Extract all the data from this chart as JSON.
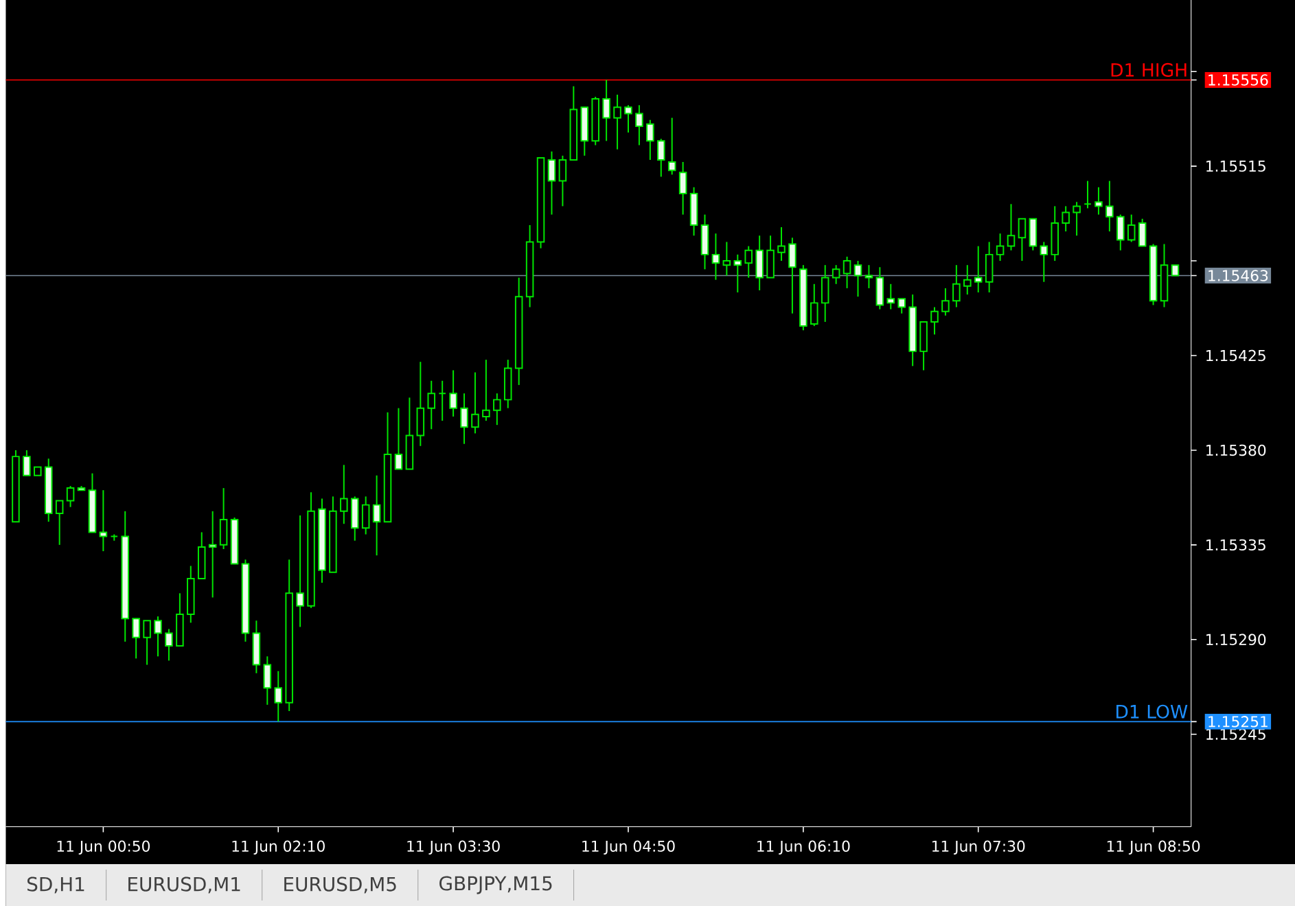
{
  "chart_data": {
    "type": "candlestick",
    "color": "#00e600",
    "grid": false,
    "categories": [
      null,
      null,
      null,
      null,
      null,
      null,
      null,
      null,
      "11 Jun 00:50",
      null,
      null,
      null,
      null,
      null,
      null,
      null,
      null,
      null,
      null,
      null,
      null,
      null,
      null,
      null,
      "11 Jun 02:10",
      null,
      null,
      null,
      null,
      null,
      null,
      null,
      null,
      null,
      null,
      null,
      null,
      null,
      null,
      null,
      "11 Jun 03:30",
      null,
      null,
      null,
      null,
      null,
      null,
      null,
      null,
      null,
      null,
      null,
      null,
      null,
      null,
      null,
      "11 Jun 04:50",
      null,
      null,
      null,
      null,
      null,
      null,
      null,
      null,
      null,
      null,
      null,
      null,
      null,
      null,
      null,
      "11 Jun 06:10",
      null,
      null,
      null,
      null,
      null,
      null,
      null,
      null,
      null,
      null,
      null,
      null,
      null,
      null,
      null,
      "11 Jun 07:30",
      null,
      null,
      null,
      null,
      null,
      null,
      null,
      null,
      null,
      null,
      null,
      null,
      null,
      null,
      null,
      "11 Jun 08:50",
      null,
      null
    ],
    "ohlc": [
      [
        1.15346,
        1.1538,
        1.15346,
        1.15377
      ],
      [
        1.15377,
        1.1538,
        1.15368,
        1.15368
      ],
      [
        1.15368,
        1.15372,
        1.15368,
        1.15372
      ],
      [
        1.15372,
        1.15376,
        1.15346,
        1.1535
      ],
      [
        1.1535,
        1.15356,
        1.15335,
        1.15356
      ],
      [
        1.15356,
        1.15363,
        1.15353,
        1.15362
      ],
      [
        1.15362,
        1.15363,
        1.15361,
        1.15361
      ],
      [
        1.15361,
        1.15369,
        1.15341,
        1.15341
      ],
      [
        1.15341,
        1.15361,
        1.15332,
        1.15339
      ],
      [
        1.15339,
        1.1534,
        1.15337,
        1.15339
      ],
      [
        1.15339,
        1.15351,
        1.15289,
        1.153
      ],
      [
        1.153,
        1.153,
        1.15281,
        1.15291
      ],
      [
        1.15291,
        1.15299,
        1.15278,
        1.15299
      ],
      [
        1.15299,
        1.15301,
        1.15282,
        1.15293
      ],
      [
        1.15293,
        1.15295,
        1.1528,
        1.15287
      ],
      [
        1.15287,
        1.15312,
        1.15287,
        1.15302
      ],
      [
        1.15302,
        1.15325,
        1.15298,
        1.15319
      ],
      [
        1.15319,
        1.15341,
        1.15319,
        1.15334
      ],
      [
        1.15335,
        1.15351,
        1.1531,
        1.15334
      ],
      [
        1.15335,
        1.15362,
        1.15333,
        1.15347
      ],
      [
        1.15347,
        1.15348,
        1.15326,
        1.15326
      ],
      [
        1.15326,
        1.15328,
        1.15289,
        1.15293
      ],
      [
        1.15293,
        1.15299,
        1.15274,
        1.15278
      ],
      [
        1.15278,
        1.15282,
        1.15259,
        1.15267
      ],
      [
        1.15267,
        1.15275,
        1.15251,
        1.1526
      ],
      [
        1.1526,
        1.15328,
        1.15256,
        1.15312
      ],
      [
        1.15312,
        1.15349,
        1.15296,
        1.15306
      ],
      [
        1.15306,
        1.1536,
        1.15305,
        1.15351
      ],
      [
        1.15352,
        1.15357,
        1.15317,
        1.15323
      ],
      [
        1.15322,
        1.15358,
        1.15322,
        1.15351
      ],
      [
        1.15351,
        1.15373,
        1.15345,
        1.15357
      ],
      [
        1.15357,
        1.15358,
        1.15337,
        1.15343
      ],
      [
        1.15343,
        1.15358,
        1.1534,
        1.15354
      ],
      [
        1.15354,
        1.15368,
        1.1533,
        1.15346
      ],
      [
        1.15346,
        1.15398,
        1.15346,
        1.15378
      ],
      [
        1.15378,
        1.154,
        1.15371,
        1.15371
      ],
      [
        1.15371,
        1.15405,
        1.15371,
        1.15387
      ],
      [
        1.15387,
        1.15422,
        1.15382,
        1.154
      ],
      [
        1.154,
        1.15413,
        1.1539,
        1.15407
      ],
      [
        1.15407,
        1.15413,
        1.15394,
        1.15407
      ],
      [
        1.15407,
        1.15418,
        1.15396,
        1.154
      ],
      [
        1.154,
        1.15407,
        1.15383,
        1.15391
      ],
      [
        1.15391,
        1.15417,
        1.15388,
        1.15397
      ],
      [
        1.15396,
        1.15423,
        1.15394,
        1.15399
      ],
      [
        1.15399,
        1.15407,
        1.15392,
        1.15404
      ],
      [
        1.15404,
        1.15423,
        1.154,
        1.15419
      ],
      [
        1.15419,
        1.15462,
        1.15411,
        1.15453
      ],
      [
        1.15453,
        1.15487,
        1.15448,
        1.15479
      ],
      [
        1.15479,
        1.15519,
        1.15476,
        1.15519
      ],
      [
        1.15518,
        1.15522,
        1.15492,
        1.15508
      ],
      [
        1.15508,
        1.1552,
        1.15496,
        1.15518
      ],
      [
        1.15518,
        1.15553,
        1.15518,
        1.15542
      ],
      [
        1.15543,
        1.15543,
        1.1552,
        1.15527
      ],
      [
        1.15527,
        1.15548,
        1.15525,
        1.15547
      ],
      [
        1.15547,
        1.15556,
        1.15527,
        1.15538
      ],
      [
        1.15538,
        1.15549,
        1.15523,
        1.15543
      ],
      [
        1.15543,
        1.15544,
        1.15531,
        1.1554
      ],
      [
        1.1554,
        1.15544,
        1.15525,
        1.15534
      ],
      [
        1.15535,
        1.15537,
        1.15518,
        1.15527
      ],
      [
        1.15527,
        1.15528,
        1.1551,
        1.15518
      ],
      [
        1.15517,
        1.15538,
        1.15511,
        1.15513
      ],
      [
        1.15512,
        1.15517,
        1.15492,
        1.15502
      ],
      [
        1.15502,
        1.15505,
        1.15482,
        1.15487
      ],
      [
        1.15487,
        1.15492,
        1.15466,
        1.15473
      ],
      [
        1.15473,
        1.15483,
        1.15461,
        1.15469
      ],
      [
        1.15468,
        1.15479,
        1.15463,
        1.1547
      ],
      [
        1.1547,
        1.15473,
        1.15455,
        1.15468
      ],
      [
        1.15469,
        1.15477,
        1.15462,
        1.15475
      ],
      [
        1.15475,
        1.15482,
        1.15456,
        1.15462
      ],
      [
        1.15462,
        1.15482,
        1.15462,
        1.15475
      ],
      [
        1.15474,
        1.15486,
        1.1547,
        1.15477
      ],
      [
        1.15478,
        1.15481,
        1.15445,
        1.15467
      ],
      [
        1.15466,
        1.15468,
        1.15437,
        1.15439
      ],
      [
        1.1544,
        1.15459,
        1.15439,
        1.1545
      ],
      [
        1.1545,
        1.15468,
        1.15441,
        1.15462
      ],
      [
        1.15462,
        1.15468,
        1.15459,
        1.15466
      ],
      [
        1.15464,
        1.15472,
        1.15457,
        1.1547
      ],
      [
        1.15468,
        1.1547,
        1.15453,
        1.15463
      ],
      [
        1.15463,
        1.15468,
        1.15457,
        1.15462
      ],
      [
        1.15462,
        1.15467,
        1.15447,
        1.15449
      ],
      [
        1.15452,
        1.15459,
        1.15447,
        1.1545
      ],
      [
        1.15452,
        1.15452,
        1.15445,
        1.15448
      ],
      [
        1.15448,
        1.15454,
        1.1542,
        1.15427
      ],
      [
        1.15427,
        1.15441,
        1.15418,
        1.15441
      ],
      [
        1.15441,
        1.15448,
        1.15435,
        1.15446
      ],
      [
        1.15446,
        1.15457,
        1.15444,
        1.15451
      ],
      [
        1.15451,
        1.15468,
        1.15448,
        1.15459
      ],
      [
        1.15458,
        1.15468,
        1.15454,
        1.15461
      ],
      [
        1.15462,
        1.15477,
        1.15455,
        1.1546
      ],
      [
        1.1546,
        1.15479,
        1.15455,
        1.15473
      ],
      [
        1.15473,
        1.15483,
        1.1547,
        1.15477
      ],
      [
        1.15477,
        1.15497,
        1.15475,
        1.15482
      ],
      [
        1.15481,
        1.1549,
        1.1547,
        1.1549
      ],
      [
        1.1549,
        1.1549,
        1.15475,
        1.15477
      ],
      [
        1.15477,
        1.15479,
        1.1546,
        1.15473
      ],
      [
        1.15473,
        1.15496,
        1.1547,
        1.15488
      ],
      [
        1.15488,
        1.15496,
        1.15484,
        1.15493
      ],
      [
        1.15493,
        1.15498,
        1.15482,
        1.15496
      ],
      [
        1.15497,
        1.15508,
        1.15495,
        1.15497
      ],
      [
        1.15498,
        1.15505,
        1.15492,
        1.15496
      ],
      [
        1.15496,
        1.15508,
        1.15484,
        1.15491
      ],
      [
        1.15491,
        1.15492,
        1.15475,
        1.1548
      ],
      [
        1.1548,
        1.15492,
        1.15479,
        1.15487
      ],
      [
        1.15488,
        1.1549,
        1.15477,
        1.15477
      ],
      [
        1.15477,
        1.15478,
        1.15449,
        1.15451
      ],
      [
        1.15451,
        1.15478,
        1.15448,
        1.15468
      ],
      [
        1.15468,
        1.15468,
        1.15463,
        1.15463
      ]
    ],
    "ylim": [
      1.15201,
      1.15594
    ],
    "yticks": [
      1.15245,
      {
        "value": 1.15251,
        "label": "1.15251"
      },
      {
        "value": 1.1529,
        "label": "1.15290"
      },
      1.15335,
      {
        "value": 1.1538,
        "label": "1.15380"
      },
      1.15425,
      {
        "value": 1.15463,
        "label": "1.15463"
      },
      {
        "value": 1.1547,
        "label": null
      },
      1.15515,
      {
        "value": 1.15556,
        "label": "1.15556"
      },
      {
        "value": 1.1556,
        "label": null
      }
    ],
    "ref_lines": [
      {
        "axis": "y",
        "value": 1.15556,
        "label": "D1 HIGH",
        "color": "#ff0000"
      },
      {
        "axis": "y",
        "value": 1.15251,
        "label": "D1 LOW",
        "color": "#1e90ff"
      },
      {
        "axis": "y",
        "value": 1.15463,
        "color": "#778899"
      }
    ],
    "annotations": [
      "SD,H1",
      "EURUSD,M1",
      "EURUSD,M5",
      "GBPJPY,M15"
    ]
  }
}
